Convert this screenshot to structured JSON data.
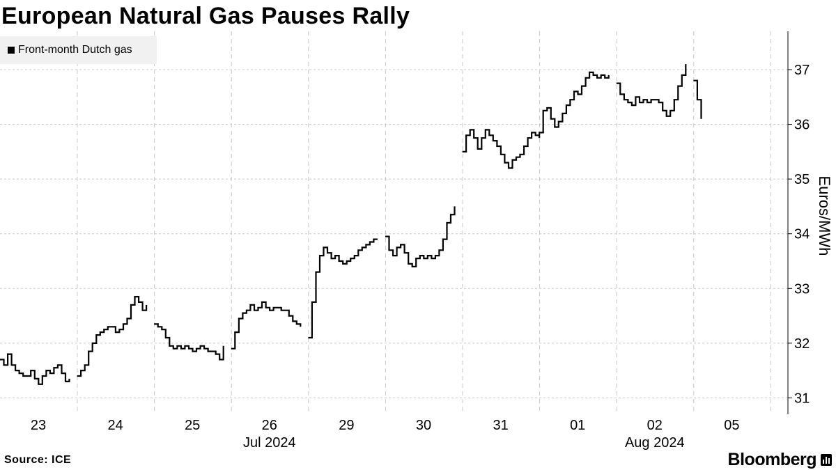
{
  "title": "European Natural Gas Pauses Rally",
  "legend": {
    "label": "Front-month Dutch gas",
    "color": "#000000"
  },
  "source": "Source: ICE",
  "brand": "Bloomberg",
  "chart_data": {
    "type": "line",
    "title": "European Natural Gas Pauses Rally",
    "ylabel": "Euros/MWh",
    "xlabel": "",
    "ylim": [
      30.7,
      37.7
    ],
    "yticks": [
      31,
      32,
      33,
      34,
      35,
      36,
      37
    ],
    "grid": true,
    "legend_position": "top-left",
    "categories": [
      "23",
      "24",
      "25",
      "26",
      "29",
      "30",
      "31",
      "01",
      "02",
      "05"
    ],
    "month_labels": [
      {
        "label": "Jul 2024",
        "under": "26"
      },
      {
        "label": "Aug 2024",
        "under": "02"
      }
    ],
    "series": [
      {
        "name": "Front-month Dutch gas",
        "color": "#000000",
        "points": [
          [
            0.0,
            31.7
          ],
          [
            0.05,
            31.6
          ],
          [
            0.1,
            31.8
          ],
          [
            0.15,
            31.6
          ],
          [
            0.2,
            31.5
          ],
          [
            0.25,
            31.45
          ],
          [
            0.3,
            31.4
          ],
          [
            0.35,
            31.4
          ],
          [
            0.4,
            31.5
          ],
          [
            0.45,
            31.35
          ],
          [
            0.5,
            31.25
          ],
          [
            0.55,
            31.4
          ],
          [
            0.6,
            31.5
          ],
          [
            0.65,
            31.45
          ],
          [
            0.7,
            31.55
          ],
          [
            0.75,
            31.6
          ],
          [
            0.8,
            31.45
          ],
          [
            0.85,
            31.3
          ],
          [
            0.9,
            31.35
          ],
          [
            1.0,
            31.4
          ],
          [
            1.05,
            31.5
          ],
          [
            1.1,
            31.6
          ],
          [
            1.15,
            31.85
          ],
          [
            1.2,
            32.0
          ],
          [
            1.25,
            32.15
          ],
          [
            1.3,
            32.2
          ],
          [
            1.35,
            32.25
          ],
          [
            1.4,
            32.3
          ],
          [
            1.45,
            32.3
          ],
          [
            1.5,
            32.2
          ],
          [
            1.55,
            32.25
          ],
          [
            1.6,
            32.35
          ],
          [
            1.65,
            32.45
          ],
          [
            1.7,
            32.7
          ],
          [
            1.75,
            32.85
          ],
          [
            1.8,
            32.75
          ],
          [
            1.85,
            32.6
          ],
          [
            1.9,
            32.7
          ],
          [
            2.0,
            32.35
          ],
          [
            2.05,
            32.3
          ],
          [
            2.1,
            32.25
          ],
          [
            2.15,
            32.1
          ],
          [
            2.2,
            31.95
          ],
          [
            2.25,
            31.9
          ],
          [
            2.3,
            31.95
          ],
          [
            2.35,
            31.9
          ],
          [
            2.4,
            31.95
          ],
          [
            2.45,
            31.9
          ],
          [
            2.5,
            31.85
          ],
          [
            2.55,
            31.9
          ],
          [
            2.6,
            31.95
          ],
          [
            2.65,
            31.9
          ],
          [
            2.7,
            31.85
          ],
          [
            2.75,
            31.85
          ],
          [
            2.8,
            31.8
          ],
          [
            2.85,
            31.7
          ],
          [
            2.9,
            31.95
          ],
          [
            3.0,
            31.9
          ],
          [
            3.05,
            32.2
          ],
          [
            3.1,
            32.45
          ],
          [
            3.15,
            32.55
          ],
          [
            3.2,
            32.6
          ],
          [
            3.25,
            32.7
          ],
          [
            3.3,
            32.6
          ],
          [
            3.35,
            32.65
          ],
          [
            3.4,
            32.75
          ],
          [
            3.45,
            32.65
          ],
          [
            3.5,
            32.6
          ],
          [
            3.55,
            32.65
          ],
          [
            3.6,
            32.65
          ],
          [
            3.65,
            32.6
          ],
          [
            3.7,
            32.6
          ],
          [
            3.75,
            32.5
          ],
          [
            3.8,
            32.4
          ],
          [
            3.85,
            32.35
          ],
          [
            3.9,
            32.3
          ],
          [
            4.0,
            32.1
          ],
          [
            4.05,
            32.75
          ],
          [
            4.1,
            33.3
          ],
          [
            4.15,
            33.6
          ],
          [
            4.2,
            33.75
          ],
          [
            4.25,
            33.65
          ],
          [
            4.3,
            33.55
          ],
          [
            4.35,
            33.6
          ],
          [
            4.4,
            33.5
          ],
          [
            4.45,
            33.45
          ],
          [
            4.5,
            33.5
          ],
          [
            4.55,
            33.55
          ],
          [
            4.6,
            33.6
          ],
          [
            4.65,
            33.7
          ],
          [
            4.7,
            33.75
          ],
          [
            4.75,
            33.8
          ],
          [
            4.8,
            33.85
          ],
          [
            4.85,
            33.9
          ],
          [
            4.9,
            33.9
          ],
          [
            5.0,
            33.95
          ],
          [
            5.05,
            33.7
          ],
          [
            5.1,
            33.6
          ],
          [
            5.15,
            33.75
          ],
          [
            5.2,
            33.8
          ],
          [
            5.25,
            33.65
          ],
          [
            5.3,
            33.45
          ],
          [
            5.35,
            33.4
          ],
          [
            5.4,
            33.55
          ],
          [
            5.45,
            33.6
          ],
          [
            5.5,
            33.55
          ],
          [
            5.55,
            33.6
          ],
          [
            5.6,
            33.55
          ],
          [
            5.65,
            33.6
          ],
          [
            5.7,
            33.7
          ],
          [
            5.75,
            33.9
          ],
          [
            5.8,
            34.2
          ],
          [
            5.85,
            34.35
          ],
          [
            5.9,
            34.5
          ],
          [
            6.0,
            35.5
          ],
          [
            6.05,
            35.8
          ],
          [
            6.1,
            35.9
          ],
          [
            6.15,
            35.75
          ],
          [
            6.2,
            35.55
          ],
          [
            6.25,
            35.75
          ],
          [
            6.3,
            35.9
          ],
          [
            6.35,
            35.8
          ],
          [
            6.4,
            35.7
          ],
          [
            6.45,
            35.6
          ],
          [
            6.5,
            35.45
          ],
          [
            6.55,
            35.3
          ],
          [
            6.6,
            35.2
          ],
          [
            6.65,
            35.35
          ],
          [
            6.7,
            35.4
          ],
          [
            6.75,
            35.45
          ],
          [
            6.8,
            35.6
          ],
          [
            6.85,
            35.75
          ],
          [
            6.9,
            35.85
          ],
          [
            6.95,
            35.8
          ],
          [
            7.0,
            35.75
          ],
          [
            7.0,
            35.85
          ],
          [
            7.05,
            36.25
          ],
          [
            7.1,
            36.3
          ],
          [
            7.15,
            36.1
          ],
          [
            7.2,
            35.95
          ],
          [
            7.25,
            36.05
          ],
          [
            7.3,
            36.2
          ],
          [
            7.35,
            36.35
          ],
          [
            7.4,
            36.45
          ],
          [
            7.45,
            36.6
          ],
          [
            7.5,
            36.55
          ],
          [
            7.55,
            36.7
          ],
          [
            7.6,
            36.85
          ],
          [
            7.65,
            36.95
          ],
          [
            7.7,
            36.9
          ],
          [
            7.75,
            36.85
          ],
          [
            7.8,
            36.9
          ],
          [
            7.85,
            36.85
          ],
          [
            7.9,
            36.9
          ],
          [
            8.0,
            36.75
          ],
          [
            8.05,
            36.55
          ],
          [
            8.1,
            36.45
          ],
          [
            8.15,
            36.4
          ],
          [
            8.2,
            36.35
          ],
          [
            8.25,
            36.5
          ],
          [
            8.3,
            36.4
          ],
          [
            8.35,
            36.45
          ],
          [
            8.4,
            36.4
          ],
          [
            8.45,
            36.45
          ],
          [
            8.5,
            36.45
          ],
          [
            8.55,
            36.4
          ],
          [
            8.6,
            36.25
          ],
          [
            8.65,
            36.15
          ],
          [
            8.7,
            36.25
          ],
          [
            8.75,
            36.45
          ],
          [
            8.8,
            36.7
          ],
          [
            8.85,
            36.9
          ],
          [
            8.9,
            37.1
          ],
          [
            9.0,
            36.8
          ],
          [
            9.05,
            36.45
          ],
          [
            9.1,
            36.1
          ]
        ]
      }
    ]
  }
}
